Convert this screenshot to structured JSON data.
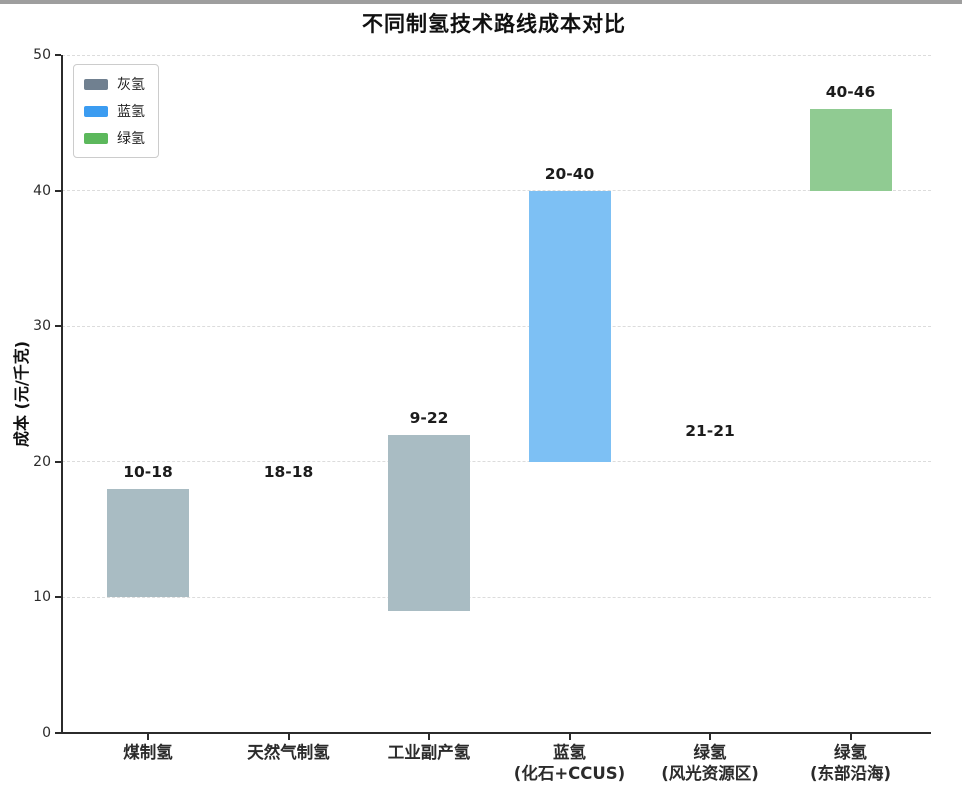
{
  "window": {
    "top_edge_color": "#9e9e9e"
  },
  "chart_data": {
    "type": "bar",
    "subtype": "floating-range-bars",
    "title": "不同制氢技术路线成本对比",
    "xlabel": "",
    "ylabel": "成本 (元/千克)",
    "ylim": [
      0,
      50
    ],
    "yticks": [
      0,
      10,
      20,
      30,
      40,
      50
    ],
    "grid": "horizontal-dashed",
    "legend_position": "upper-left",
    "legend": [
      {
        "label": "灰氢",
        "color": "#708090"
      },
      {
        "label": "蓝氢",
        "color": "#3b9cf1"
      },
      {
        "label": "绿氢",
        "color": "#5cb85c"
      }
    ],
    "categories": [
      {
        "label": "煤制氢",
        "sublabel": "",
        "low": 10,
        "high": 18,
        "range_label": "10-18",
        "series": "灰氢",
        "bar_color": "#a9bcc3"
      },
      {
        "label": "天然气制氢",
        "sublabel": "",
        "low": 18,
        "high": 18,
        "range_label": "18-18",
        "series": "灰氢",
        "bar_color": "#a9bcc3"
      },
      {
        "label": "工业副产氢",
        "sublabel": "",
        "low": 9,
        "high": 22,
        "range_label": "9-22",
        "series": "灰氢",
        "bar_color": "#a9bcc3"
      },
      {
        "label": "蓝氢",
        "sublabel": "(化石+CCUS)",
        "low": 20,
        "high": 40,
        "range_label": "20-40",
        "series": "蓝氢",
        "bar_color": "#7dc0f4"
      },
      {
        "label": "绿氢",
        "sublabel": "(风光资源区)",
        "low": 21,
        "high": 21,
        "range_label": "21-21",
        "series": "绿氢",
        "bar_color": "#90cb92"
      },
      {
        "label": "绿氢",
        "sublabel": "(东部沿海)",
        "low": 40,
        "high": 46,
        "range_label": "40-46",
        "series": "绿氢",
        "bar_color": "#90cb92"
      }
    ],
    "colors": {
      "axis": "#2b2b2b",
      "grid": "#dcdcdc",
      "value_text": "#1c1c1c"
    }
  }
}
